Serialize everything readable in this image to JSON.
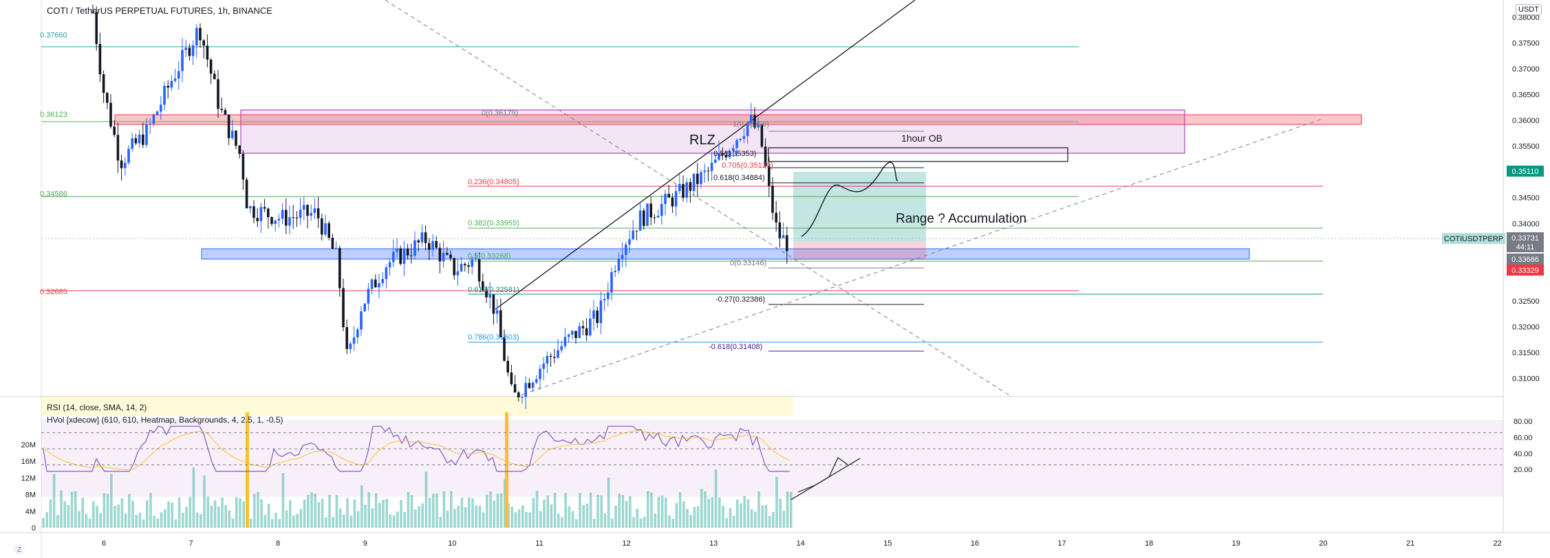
{
  "header": {
    "title": "COTI / TetherUS PERPETUAL FUTURES, 1h, BINANCE",
    "currency_button": "USDT"
  },
  "indicators": {
    "rsi": "RSI (14, close, SMA, 14, 2)",
    "hvol": "HVol [xdecow] (610, 610, Heatmap, Backgrounds, 4, 2.5, 1, -0.5)"
  },
  "chart_data": {
    "type": "candlestick",
    "symbol": "COTIUSDTPERP",
    "y_range": [
      0.3065,
      0.3833
    ],
    "price_ticks": [
      "0.38000",
      "0.37500",
      "0.37000",
      "0.36500",
      "0.36000",
      "0.35500",
      "0.35000",
      "0.34500",
      "0.34000",
      "0.33500",
      "0.32500",
      "0.32000",
      "0.31500",
      "0.31000"
    ],
    "price_tick_values": [
      0.38,
      0.375,
      0.37,
      0.365,
      0.36,
      0.355,
      0.35,
      0.345,
      0.34,
      0.335,
      0.325,
      0.32,
      0.315,
      0.31
    ],
    "x_labels": [
      "6",
      "7",
      "8",
      "9",
      "10",
      "11",
      "12",
      "13",
      "14",
      "15",
      "16",
      "17",
      "18",
      "19",
      "20",
      "21",
      "22"
    ],
    "x_label_days": [
      6,
      7,
      8,
      9,
      10,
      11,
      12,
      13,
      14,
      15,
      16,
      17,
      18,
      19,
      20,
      21,
      22
    ],
    "price_tags": [
      {
        "text": "0.35110",
        "value": 0.3511,
        "color": "#089981"
      },
      {
        "text": "0.33731",
        "value": 0.33731,
        "color": "#787b86"
      },
      {
        "text": "44:11",
        "value": 0.33615,
        "color": "#787b86"
      },
      {
        "text": "0.33666",
        "value": 0.33666,
        "color": "#787b86"
      },
      {
        "text": "0.33329",
        "value": 0.33329,
        "color": "#f23645"
      }
    ],
    "symbol_tag": "COTIUSDTPERP",
    "level_labels_left": [
      {
        "text": "0.37660",
        "value": 0.3766,
        "color": "#26a69a"
      },
      {
        "text": "0.36123",
        "value": 0.36123,
        "color": "#4caf50"
      },
      {
        "text": "0.34586",
        "value": 0.34586,
        "color": "#4caf50"
      },
      {
        "text": "0.32685",
        "value": 0.32685,
        "color": "#f23645"
      }
    ],
    "fib_labels": [
      {
        "text": "0(0.36179)",
        "value": 0.36179,
        "color": "#787b86"
      },
      {
        "text": "0.236(0.34805)",
        "value": 0.34805,
        "color": "#f23645"
      },
      {
        "text": "0.382(0.33955)",
        "value": 0.33955,
        "color": "#4caf50"
      },
      {
        "text": "0.5(0.33268)",
        "value": 0.33268,
        "color": "#4caf50"
      },
      {
        "text": "0.618(0.32581)",
        "value": 0.32581,
        "color": "#089981"
      },
      {
        "text": "0.786(0.31603)",
        "value": 0.31603,
        "color": "#2196f3"
      },
      {
        "text": "1(0.36208)",
        "value": 0.36208,
        "color": "#787b86"
      },
      {
        "text": "0.5(0.35353)",
        "value": 0.35353,
        "color": "#131722"
      },
      {
        "text": "0.705(0.35129)",
        "value": 0.35129,
        "color": "#f23645"
      },
      {
        "text": "0.618(0.34884)",
        "value": 0.34884,
        "color": "#131722"
      },
      {
        "text": "0(0.33146)",
        "value": 0.33146,
        "color": "#787b86"
      },
      {
        "text": "-0.27(0.32386)",
        "value": 0.32386,
        "color": "#131722"
      },
      {
        "text": "-0.618(0.31408)",
        "value": 0.31408,
        "color": "#4a148c"
      }
    ],
    "annotations": [
      "RLZ",
      "1hour OB",
      "Range ? Accumulation"
    ],
    "rsi_ticks": [
      "80.00",
      "60.00",
      "40.00",
      "20.00"
    ],
    "rsi_tick_values": [
      80,
      60,
      40,
      20
    ],
    "volume_ticks": [
      "20M",
      "16M",
      "12M",
      "8M",
      "4M",
      "0"
    ],
    "volume_tick_values": [
      20,
      16,
      12,
      8,
      4,
      0
    ],
    "bottom_button": "Z",
    "colors": {
      "up": "#2962ff",
      "down": "#131722",
      "red": "#f23645",
      "teal": "#26a69a",
      "purple": "#9c27b0"
    }
  }
}
